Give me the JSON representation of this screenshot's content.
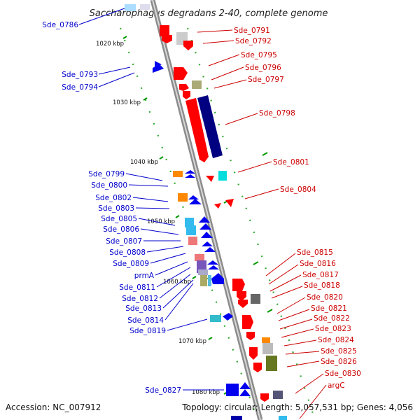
{
  "title": "Saccharophagus degradans 2-40, complete genome",
  "accession": "Accession: NC_007912",
  "summary": "Topology: circular; Length: 5,057,531 bp; Genes: 4,056",
  "ticks": [
    "1020 kbp",
    "1030 kbp",
    "1040 kbp",
    "1050 kbp",
    "1060 kbp",
    "1070 kbp",
    "1080 kbp"
  ],
  "left_labels": [
    "Sde_0786",
    "Sde_0793",
    "Sde_0794",
    "Sde_0799",
    "Sde_0800",
    "Sde_0802",
    "Sde_0803",
    "Sde_0805",
    "Sde_0806",
    "Sde_0807",
    "Sde_0808",
    "Sde_0809",
    "prmA",
    "Sde_0811",
    "Sde_0812",
    "Sde_0813",
    "Sde_0814",
    "Sde_0819",
    "Sde_0827"
  ],
  "right_labels": [
    "Sde_0791",
    "Sde_0792",
    "Sde_0795",
    "Sde_0796",
    "Sde_0797",
    "Sde_0798",
    "Sde_0801",
    "Sde_0804",
    "Sde_0815",
    "Sde_0816",
    "Sde_0817",
    "Sde_0818",
    "Sde_0820",
    "Sde_0821",
    "Sde_0822",
    "Sde_0823",
    "Sde_0824",
    "Sde_0825",
    "Sde_0826",
    "Sde_0830",
    "argC"
  ],
  "colors": {
    "forward_strand": "#ff0000",
    "reverse_strand": "#0000ee",
    "dark_reverse": "#000080",
    "left_label": "#0000cc",
    "right_label": "#cc0000",
    "backbone": "#8c8c8c",
    "tick_mark": "#009900"
  }
}
